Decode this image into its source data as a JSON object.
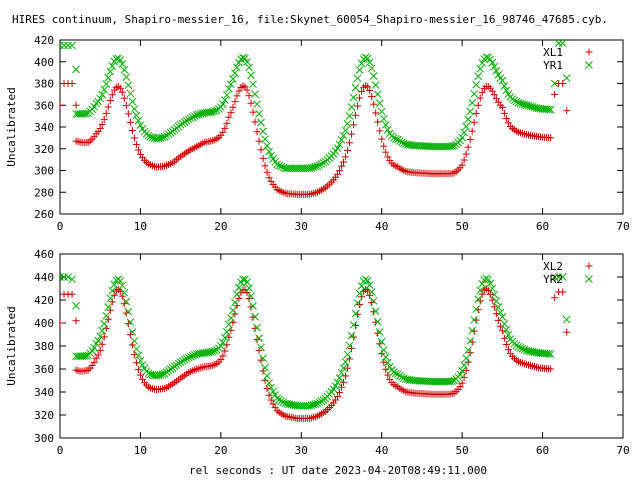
{
  "chart_data": {
    "type": "scatter",
    "title": "HIRES continuum, Shapiro-messier_16, file:Skynet_60054_Shapiro-messier_16_98746_47685.cyb.",
    "xlabel": "rel seconds : UT date 2023-04-20T08:49:11.000",
    "colors": {
      "red": "#d00000",
      "green": "#00b000"
    },
    "panels": [
      {
        "ylabel": "Uncalibrated",
        "xlim": [
          0,
          70
        ],
        "ylim": [
          260,
          420
        ],
        "xticks": [
          0,
          10,
          20,
          30,
          40,
          50,
          60,
          70
        ],
        "yticks": [
          260,
          280,
          300,
          320,
          340,
          360,
          380,
          400,
          420
        ],
        "series": [
          {
            "name": "XL1",
            "marker": "plus",
            "color": "#d00000",
            "outliers": [
              [
                0.0,
                360
              ],
              [
                0.5,
                380
              ],
              [
                1.0,
                380
              ],
              [
                1.5,
                380
              ],
              [
                2.0,
                360
              ],
              [
                61.5,
                370
              ],
              [
                62.0,
                380
              ],
              [
                62.5,
                380
              ],
              [
                63.0,
                355
              ]
            ],
            "base": [
              [
                2.0,
                327
              ],
              [
                2.5,
                326
              ],
              [
                3.5,
                325
              ],
              [
                4.5,
                328
              ],
              [
                10.0,
                308
              ],
              [
                11.0,
                305
              ],
              [
                12.0,
                303
              ],
              [
                13.0,
                304
              ],
              [
                14.0,
                307
              ],
              [
                15.0,
                313
              ],
              [
                16.0,
                318
              ],
              [
                17.0,
                322
              ],
              [
                18.0,
                326
              ],
              [
                20.0,
                328
              ],
              [
                21.0,
                330
              ],
              [
                25.0,
                300
              ],
              [
                26.0,
                289
              ],
              [
                27.0,
                282
              ],
              [
                28.0,
                279
              ],
              [
                29.5,
                278
              ],
              [
                31.0,
                278
              ],
              [
                32.0,
                280
              ],
              [
                33.0,
                284
              ],
              [
                34.0,
                290
              ],
              [
                35.0,
                296
              ],
              [
                42.0,
                302
              ],
              [
                43.0,
                299
              ],
              [
                44.0,
                298
              ],
              [
                46.5,
                297
              ],
              [
                49.0,
                297
              ],
              [
                50.0,
                300
              ],
              [
                55.0,
                346
              ],
              [
                56.0,
                338
              ],
              [
                57.0,
                335
              ],
              [
                58.0,
                333
              ],
              [
                59.5,
                331
              ],
              [
                61.0,
                330
              ]
            ],
            "peaks": [
              [
                7.3,
                377,
                1.3
              ],
              [
                23.0,
                377,
                1.3
              ],
              [
                38.0,
                378,
                1.4
              ],
              [
                52.8,
                376,
                1.3
              ]
            ]
          },
          {
            "name": "YR1",
            "marker": "cross",
            "color": "#00b000",
            "outliers": [
              [
                0.0,
                415
              ],
              [
                0.5,
                415
              ],
              [
                1.0,
                415
              ],
              [
                1.5,
                415
              ],
              [
                2.0,
                393
              ],
              [
                61.5,
                380
              ],
              [
                62.0,
                417
              ],
              [
                62.5,
                417
              ],
              [
                63.0,
                385
              ]
            ],
            "base": [
              [
                2.0,
                352
              ],
              [
                2.5,
                352
              ],
              [
                3.5,
                352
              ],
              [
                4.5,
                356
              ],
              [
                10.0,
                335
              ],
              [
                11.0,
                331
              ],
              [
                12.0,
                329
              ],
              [
                13.0,
                331
              ],
              [
                14.0,
                336
              ],
              [
                15.0,
                342
              ],
              [
                16.0,
                347
              ],
              [
                17.0,
                351
              ],
              [
                18.0,
                353
              ],
              [
                20.0,
                354
              ],
              [
                21.0,
                356
              ],
              [
                25.0,
                325
              ],
              [
                26.0,
                313
              ],
              [
                27.0,
                305
              ],
              [
                28.0,
                302
              ],
              [
                29.5,
                302
              ],
              [
                31.0,
                302
              ],
              [
                32.0,
                304
              ],
              [
                33.0,
                308
              ],
              [
                34.0,
                314
              ],
              [
                35.0,
                320
              ],
              [
                42.0,
                327
              ],
              [
                43.0,
                324
              ],
              [
                44.0,
                323
              ],
              [
                46.5,
                322
              ],
              [
                49.0,
                322
              ],
              [
                50.0,
                325
              ],
              [
                55.0,
                370
              ],
              [
                56.0,
                365
              ],
              [
                57.0,
                362
              ],
              [
                58.0,
                360
              ],
              [
                59.5,
                357
              ],
              [
                61.0,
                356
              ]
            ],
            "peaks": [
              [
                7.3,
                403,
                1.3
              ],
              [
                23.0,
                403,
                1.3
              ],
              [
                38.0,
                404,
                1.4
              ],
              [
                52.8,
                403,
                1.3
              ]
            ]
          }
        ]
      },
      {
        "ylabel": "Uncalibrated",
        "xlim": [
          0,
          70
        ],
        "ylim": [
          300,
          460
        ],
        "xticks": [
          0,
          10,
          20,
          30,
          40,
          50,
          60,
          70
        ],
        "yticks": [
          300,
          320,
          340,
          360,
          380,
          400,
          420,
          440,
          460
        ],
        "series": [
          {
            "name": "XL2",
            "marker": "plus",
            "color": "#d00000",
            "outliers": [
              [
                0.0,
                400
              ],
              [
                0.5,
                425
              ],
              [
                1.0,
                425
              ],
              [
                1.5,
                425
              ],
              [
                2.0,
                402
              ],
              [
                61.5,
                422
              ],
              [
                62.0,
                427
              ],
              [
                62.5,
                427
              ],
              [
                63.0,
                392
              ]
            ],
            "base": [
              [
                2.0,
                359
              ],
              [
                2.5,
                358
              ],
              [
                3.5,
                358
              ],
              [
                4.5,
                362
              ],
              [
                10.0,
                346
              ],
              [
                11.0,
                343
              ],
              [
                12.0,
                342
              ],
              [
                13.0,
                343
              ],
              [
                14.0,
                347
              ],
              [
                15.0,
                352
              ],
              [
                16.0,
                357
              ],
              [
                17.0,
                360
              ],
              [
                18.0,
                362
              ],
              [
                20.0,
                363
              ],
              [
                21.0,
                365
              ],
              [
                25.0,
                345
              ],
              [
                26.0,
                332
              ],
              [
                27.0,
                323
              ],
              [
                28.0,
                319
              ],
              [
                29.5,
                317
              ],
              [
                31.0,
                317
              ],
              [
                32.0,
                319
              ],
              [
                33.0,
                323
              ],
              [
                34.0,
                329
              ],
              [
                35.0,
                335
              ],
              [
                42.0,
                343
              ],
              [
                43.0,
                340
              ],
              [
                44.0,
                339
              ],
              [
                46.5,
                338
              ],
              [
                49.0,
                338
              ],
              [
                50.0,
                341
              ],
              [
                55.0,
                377
              ],
              [
                56.0,
                370
              ],
              [
                57.0,
                366
              ],
              [
                58.0,
                364
              ],
              [
                59.5,
                361
              ],
              [
                61.0,
                360
              ]
            ],
            "peaks": [
              [
                7.3,
                429,
                1.3
              ],
              [
                23.0,
                429,
                1.3
              ],
              [
                38.0,
                429,
                1.4
              ],
              [
                52.8,
                429,
                1.3
              ]
            ]
          },
          {
            "name": "YR2",
            "marker": "cross",
            "color": "#00b000",
            "outliers": [
              [
                0.0,
                440
              ],
              [
                0.5,
                440
              ],
              [
                1.0,
                440
              ],
              [
                1.5,
                438
              ],
              [
                2.0,
                415
              ],
              [
                61.5,
                440
              ],
              [
                62.0,
                440
              ],
              [
                62.5,
                440
              ],
              [
                63.0,
                403
              ]
            ],
            "base": [
              [
                2.0,
                371
              ],
              [
                2.5,
                371
              ],
              [
                3.5,
                371
              ],
              [
                4.5,
                375
              ],
              [
                10.0,
                359
              ],
              [
                11.0,
                355
              ],
              [
                12.0,
                354
              ],
              [
                13.0,
                356
              ],
              [
                14.0,
                361
              ],
              [
                15.0,
                366
              ],
              [
                16.0,
                370
              ],
              [
                17.0,
                373
              ],
              [
                18.0,
                374
              ],
              [
                20.0,
                375
              ],
              [
                21.0,
                377
              ],
              [
                25.0,
                357
              ],
              [
                26.0,
                343
              ],
              [
                27.0,
                334
              ],
              [
                28.0,
                330
              ],
              [
                29.5,
                328
              ],
              [
                31.0,
                328
              ],
              [
                32.0,
                330
              ],
              [
                33.0,
                334
              ],
              [
                34.0,
                341
              ],
              [
                35.0,
                348
              ],
              [
                42.0,
                354
              ],
              [
                43.0,
                351
              ],
              [
                44.0,
                350
              ],
              [
                46.5,
                349
              ],
              [
                49.0,
                349
              ],
              [
                50.0,
                352
              ],
              [
                55.0,
                390
              ],
              [
                56.0,
                383
              ],
              [
                57.0,
                379
              ],
              [
                58.0,
                376
              ],
              [
                59.5,
                374
              ],
              [
                61.0,
                373
              ]
            ],
            "peaks": [
              [
                7.3,
                438,
                1.3
              ],
              [
                23.0,
                438,
                1.3
              ],
              [
                38.0,
                438,
                1.4
              ],
              [
                52.8,
                438,
                1.3
              ]
            ]
          }
        ]
      }
    ]
  }
}
